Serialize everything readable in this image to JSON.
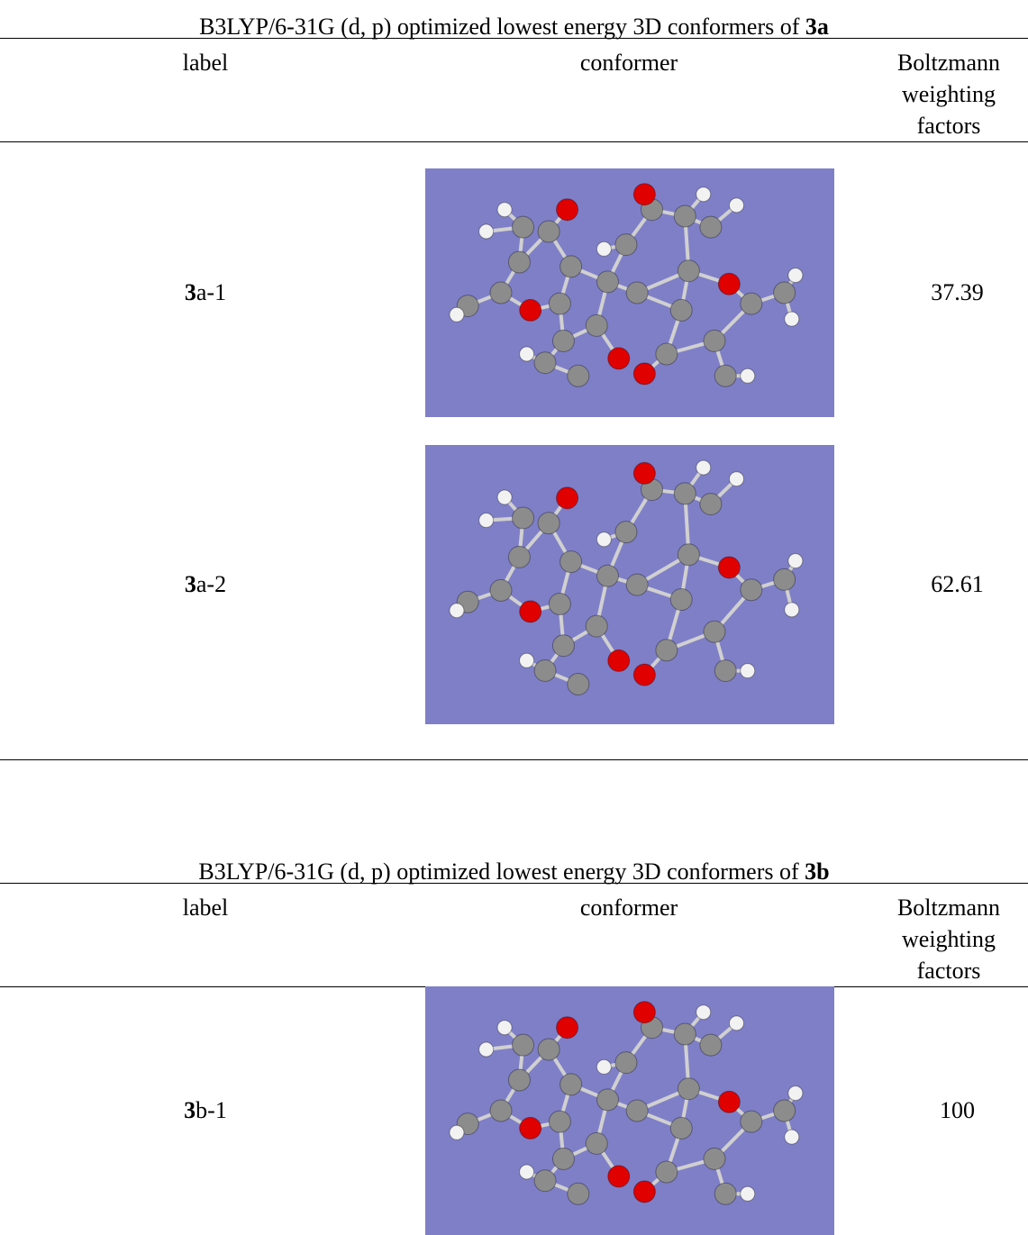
{
  "tables": [
    {
      "title_prefix": "B3LYP/6-31G (d, p) optimized lowest energy 3D conformers of",
      "title_compound": "3a",
      "columns": [
        "label",
        "conformer",
        "Boltzmann weighting factors"
      ],
      "rows": [
        {
          "label_number": "3",
          "label_suffix": "a-1",
          "weight": 37.39
        },
        {
          "label_number": "3",
          "label_suffix": "a-2",
          "weight": 62.61
        }
      ]
    },
    {
      "title_prefix": "B3LYP/6-31G (d, p) optimized lowest energy 3D conformers of",
      "title_compound": "3b",
      "columns": [
        "label",
        "conformer",
        "Boltzmann weighting factors"
      ],
      "rows": [
        {
          "label_number": "3",
          "label_suffix": "b-1",
          "weight": 100
        }
      ]
    }
  ]
}
